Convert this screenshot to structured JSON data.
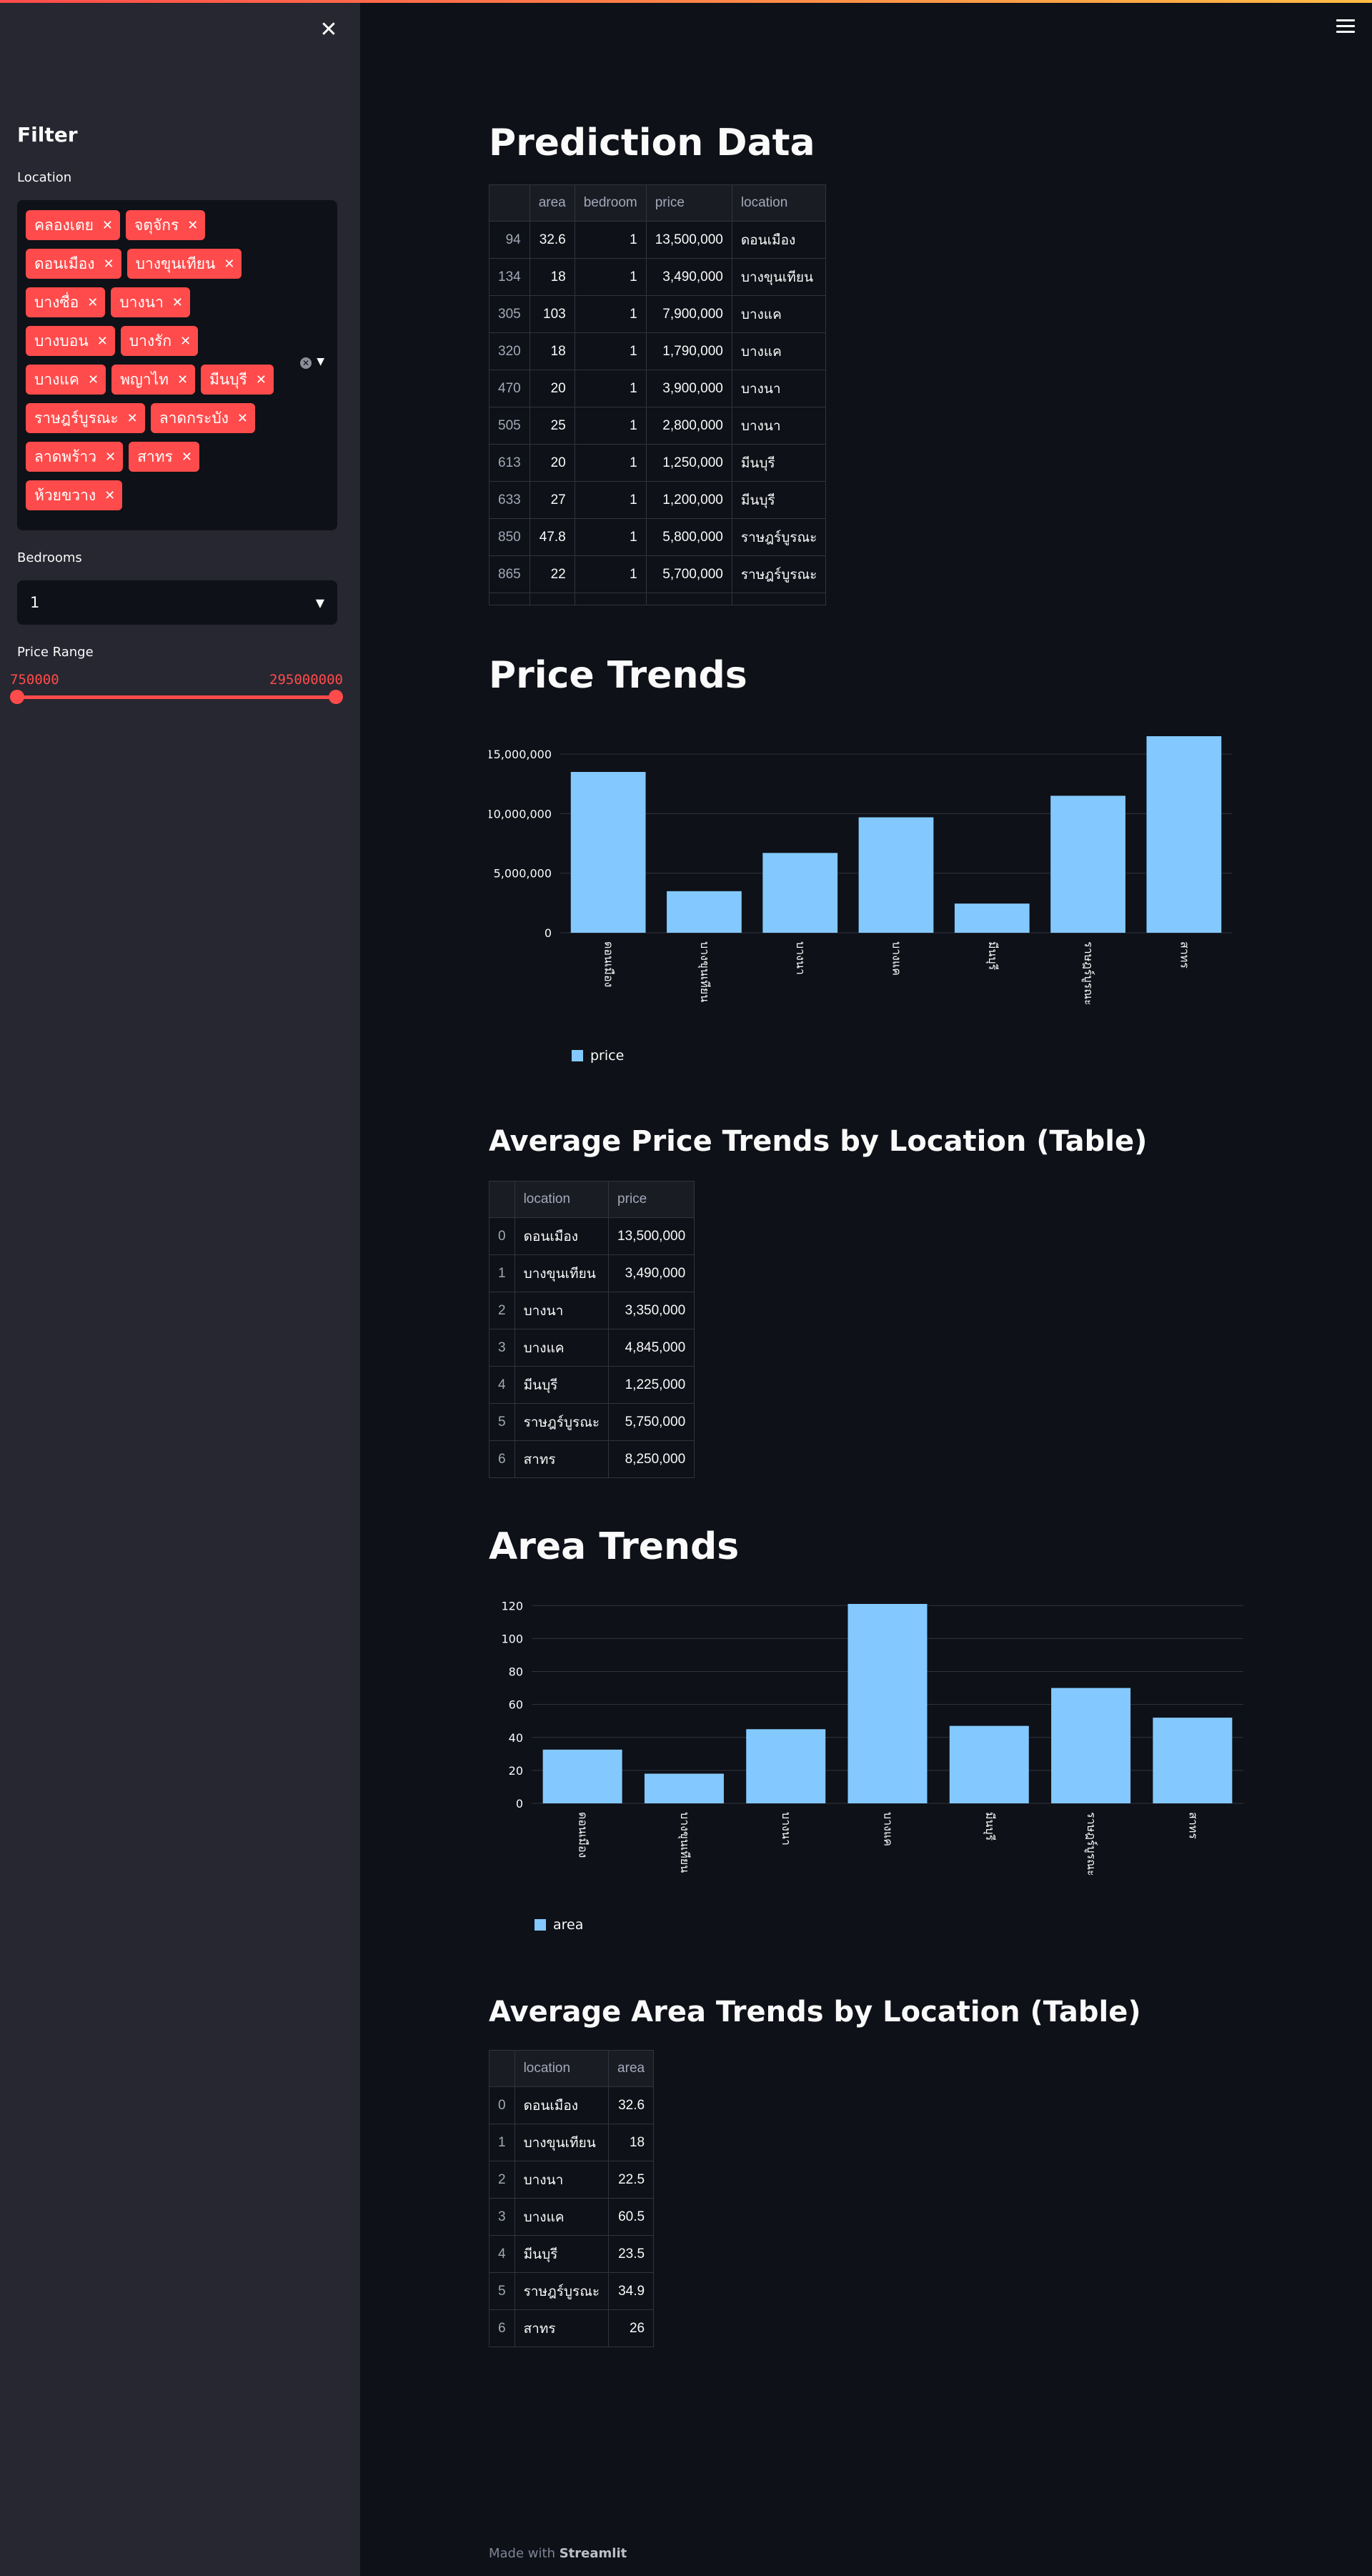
{
  "sidebar": {
    "title": "Filter",
    "location_label": "Location",
    "locations": [
      "คลองเตย",
      "จตุจักร",
      "ดอนเมือง",
      "บางขุนเทียน",
      "บางซื่อ",
      "บางนา",
      "บางบอน",
      "บางรัก",
      "บางแค",
      "พญาไท",
      "มีนบุรี",
      "ราษฎร์บูรณะ",
      "ลาดกระบัง",
      "ลาดพร้าว",
      "สาทร",
      "ห้วยขวาง"
    ],
    "bedrooms_label": "Bedrooms",
    "bedrooms_value": "1",
    "price_label": "Price Range",
    "price_min": "750000",
    "price_max": "295000000"
  },
  "prediction": {
    "title": "Prediction Data",
    "columns": [
      "",
      "area",
      "bedroom",
      "price",
      "location"
    ],
    "rows": [
      [
        "94",
        "32.6",
        "1",
        "13,500,000",
        "ดอนเมือง"
      ],
      [
        "134",
        "18",
        "1",
        "3,490,000",
        "บางขุนเทียน"
      ],
      [
        "305",
        "103",
        "1",
        "7,900,000",
        "บางแค"
      ],
      [
        "320",
        "18",
        "1",
        "1,790,000",
        "บางแค"
      ],
      [
        "470",
        "20",
        "1",
        "3,900,000",
        "บางนา"
      ],
      [
        "505",
        "25",
        "1",
        "2,800,000",
        "บางนา"
      ],
      [
        "613",
        "20",
        "1",
        "1,250,000",
        "มีนบุรี"
      ],
      [
        "633",
        "27",
        "1",
        "1,200,000",
        "มีนบุรี"
      ],
      [
        "850",
        "47.8",
        "1",
        "5,800,000",
        "ราษฎร์บูรณะ"
      ],
      [
        "865",
        "22",
        "1",
        "5,700,000",
        "ราษฎร์บูรณะ"
      ]
    ]
  },
  "price_trends": {
    "title": "Price Trends",
    "chart_data": {
      "type": "bar",
      "categories": [
        "ดอนเมือง",
        "บางขุนเทียน",
        "บางนา",
        "บางแค",
        "มีนบุรี",
        "ราษฎร์บูรณะ",
        "สาทร"
      ],
      "series": [
        {
          "name": "price",
          "values": [
            13500000,
            3490000,
            6700000,
            9690000,
            2450000,
            11500000,
            16500000
          ]
        }
      ],
      "yticks": [
        "0",
        "5,000,000",
        "10,000,000",
        "15,000,000"
      ],
      "ylim": [
        0,
        16500000
      ],
      "grid": true,
      "legend": "bottom-left"
    }
  },
  "avg_price": {
    "title": "Average Price Trends by Location (Table)",
    "columns": [
      "",
      "location",
      "price"
    ],
    "rows": [
      [
        "0",
        "ดอนเมือง",
        "13,500,000"
      ],
      [
        "1",
        "บางขุนเทียน",
        "3,490,000"
      ],
      [
        "2",
        "บางนา",
        "3,350,000"
      ],
      [
        "3",
        "บางแค",
        "4,845,000"
      ],
      [
        "4",
        "มีนบุรี",
        "1,225,000"
      ],
      [
        "5",
        "ราษฎร์บูรณะ",
        "5,750,000"
      ],
      [
        "6",
        "สาทร",
        "8,250,000"
      ]
    ]
  },
  "area_trends": {
    "title": "Area Trends",
    "chart_data": {
      "type": "bar",
      "categories": [
        "ดอนเมือง",
        "บางขุนเทียน",
        "บางนา",
        "บางแค",
        "มีนบุรี",
        "ราษฎร์บูรณะ",
        "สาทร"
      ],
      "series": [
        {
          "name": "area",
          "values": [
            32.6,
            18,
            45,
            121,
            47,
            70,
            52
          ]
        }
      ],
      "yticks": [
        "0",
        "20",
        "40",
        "60",
        "80",
        "100",
        "120"
      ],
      "ylim": [
        0,
        121
      ],
      "grid": true,
      "legend": "bottom-left"
    }
  },
  "avg_area": {
    "title": "Average Area Trends by Location (Table)",
    "columns": [
      "",
      "location",
      "area"
    ],
    "rows": [
      [
        "0",
        "ดอนเมือง",
        "32.6"
      ],
      [
        "1",
        "บางขุนเทียน",
        "18"
      ],
      [
        "2",
        "บางนา",
        "22.5"
      ],
      [
        "3",
        "บางแค",
        "60.5"
      ],
      [
        "4",
        "มีนบุรี",
        "23.5"
      ],
      [
        "5",
        "ราษฎร์บูรณะ",
        "34.9"
      ],
      [
        "6",
        "สาทร",
        "26"
      ]
    ]
  },
  "footer": {
    "prefix": "Made with",
    "brand": "Streamlit"
  },
  "colors": {
    "accent": "#ff4b4b",
    "bar": "#83c9ff",
    "background": "#0e1117",
    "sidebar": "#262730"
  }
}
